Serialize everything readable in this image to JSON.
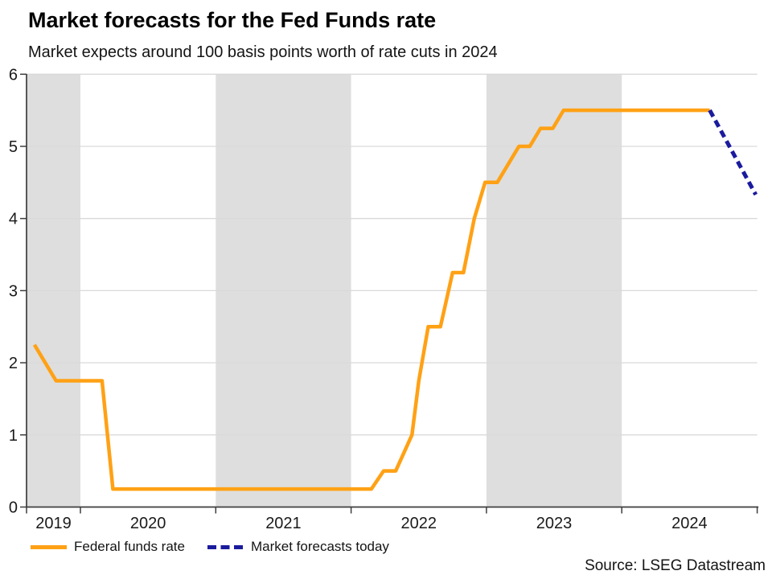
{
  "title": "Market forecasts for the Fed Funds rate",
  "subtitle": "Market expects around 100 basis points worth of rate cuts in 2024",
  "source": "Source: LSEG Datastream",
  "legend": [
    {
      "label": "Federal funds rate",
      "color": "#FFA115",
      "style": "solid"
    },
    {
      "label": "Market forecasts today",
      "color": "#1B1B9E",
      "style": "dashed"
    }
  ],
  "colors": {
    "band": "#DEDEDE",
    "gridline": "#D9D9D9",
    "axis": "#3D3D3D",
    "tick_text": "#1A1A1A",
    "federal_funds": "#FFA115",
    "forecast": "#1B1B9E"
  },
  "chart_data": {
    "type": "line",
    "title": "Market forecasts for the Fed Funds rate",
    "subtitle": "Market expects around 100 basis points worth of rate cuts in 2024",
    "xlabel": "",
    "ylabel": "",
    "x_range": [
      2019.6,
      2025.0
    ],
    "ylim": [
      0,
      6
    ],
    "grid": true,
    "legend_position": "bottom",
    "y_axis": {
      "ticks": [
        0,
        1,
        2,
        3,
        4,
        5,
        6
      ]
    },
    "x_axis": {
      "label_years": [
        2019,
        2020,
        2021,
        2022,
        2023,
        2024
      ],
      "labels": [
        "2019",
        "2020",
        "2021",
        "2022",
        "2023",
        "2024"
      ],
      "boundary_ticks": [
        2020,
        2021,
        2022,
        2023,
        2024
      ]
    },
    "shaded_years": [
      2019,
      2021,
      2023
    ],
    "series": [
      {
        "name": "Federal funds rate",
        "color": "#FFA115",
        "style": "solid",
        "points": [
          [
            2019.66,
            2.25
          ],
          [
            2019.82,
            1.75
          ],
          [
            2020.16,
            1.75
          ],
          [
            2020.24,
            0.25
          ],
          [
            2022.15,
            0.25
          ],
          [
            2022.24,
            0.5
          ],
          [
            2022.33,
            0.5
          ],
          [
            2022.45,
            1.0
          ],
          [
            2022.5,
            1.75
          ],
          [
            2022.57,
            2.5
          ],
          [
            2022.66,
            2.5
          ],
          [
            2022.75,
            3.25
          ],
          [
            2022.83,
            3.25
          ],
          [
            2022.91,
            4.0
          ],
          [
            2022.99,
            4.5
          ],
          [
            2023.08,
            4.5
          ],
          [
            2023.24,
            5.0
          ],
          [
            2023.32,
            5.0
          ],
          [
            2023.4,
            5.25
          ],
          [
            2023.49,
            5.25
          ],
          [
            2023.57,
            5.5
          ],
          [
            2024.65,
            5.5
          ]
        ]
      },
      {
        "name": "Market forecasts today",
        "color": "#1B1B9E",
        "style": "dashed",
        "points": [
          [
            2024.65,
            5.5
          ],
          [
            2024.99,
            4.33
          ]
        ]
      }
    ]
  }
}
